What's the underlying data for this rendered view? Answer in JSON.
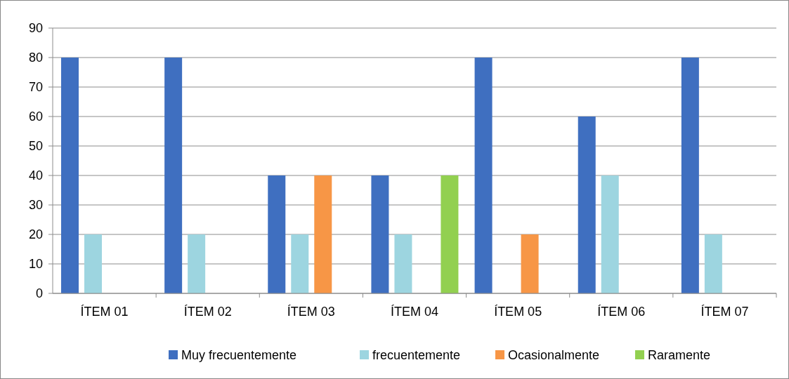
{
  "chart_data": {
    "type": "bar",
    "categories": [
      "ÍTEM 01",
      "ÍTEM 02",
      "ÍTEM 03",
      "ÍTEM 04",
      "ÍTEM 05",
      "ÍTEM 06",
      "ÍTEM 07"
    ],
    "series": [
      {
        "name": "Muy frecuentemente",
        "color": "#3f6fc0",
        "values": [
          80,
          80,
          40,
          40,
          80,
          60,
          80
        ]
      },
      {
        "name": "frecuentemente",
        "color": "#9dd5e0",
        "values": [
          20,
          20,
          20,
          20,
          0,
          40,
          20
        ]
      },
      {
        "name": "Ocasionalmente",
        "color": "#f79646",
        "values": [
          0,
          0,
          40,
          0,
          20,
          0,
          0
        ]
      },
      {
        "name": "Raramente",
        "color": "#92d050",
        "values": [
          0,
          0,
          0,
          40,
          0,
          0,
          0
        ]
      }
    ],
    "ylim": [
      0,
      90
    ],
    "yticks": [
      0,
      10,
      20,
      30,
      40,
      50,
      60,
      70,
      80,
      90
    ],
    "grid": "y",
    "legend": "bottom"
  }
}
